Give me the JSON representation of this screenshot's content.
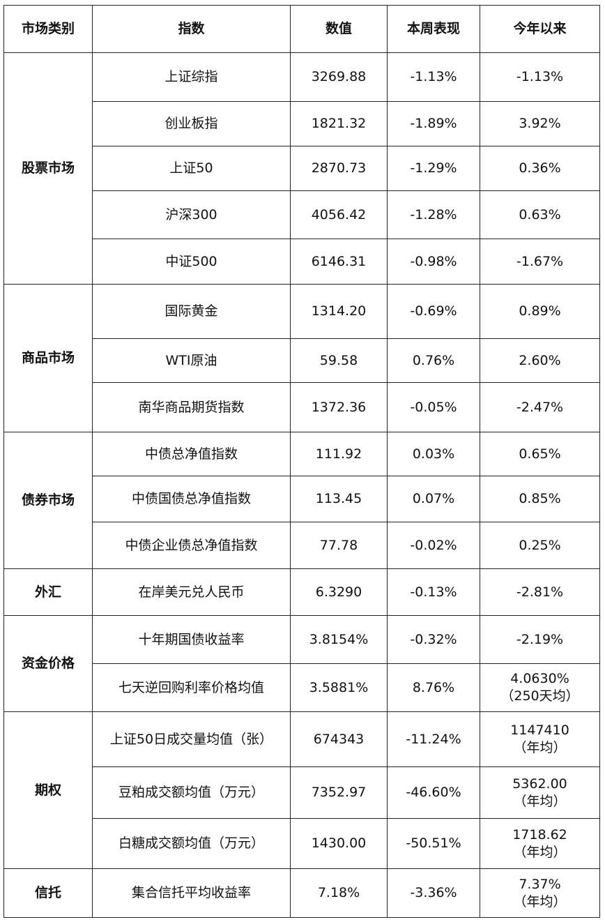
{
  "table": {
    "header": [
      "市场类别",
      "指数",
      "数值",
      "本周表现",
      "今年以来"
    ],
    "groups": [
      {
        "category": "股票市场",
        "rows": [
          [
            "上证综指",
            "3269.88",
            "-1.13%",
            "-1.13%"
          ],
          [
            "创业板指",
            "1821.32",
            "-1.89%",
            "3.92%"
          ],
          [
            "上证50",
            "2870.73",
            "-1.29%",
            "0.36%"
          ],
          [
            "沪深300",
            "4056.42",
            "-1.28%",
            "0.63%"
          ],
          [
            "中证500",
            "6146.31",
            "-0.98%",
            "-1.67%"
          ]
        ]
      },
      {
        "category": "商品市场",
        "rows": [
          [
            "国际黄金",
            "1314.20",
            "-0.69%",
            "0.89%"
          ],
          [
            "WTI原油",
            "59.58",
            "0.76%",
            "2.60%"
          ],
          [
            "南华商品期货指数",
            "1372.36",
            "-0.05%",
            "-2.47%"
          ]
        ]
      },
      {
        "category": "债券市场",
        "rows": [
          [
            "中债总净值指数",
            "111.92",
            "0.03%",
            "0.65%"
          ],
          [
            "中债国债总净值指数",
            "113.45",
            "0.07%",
            "0.85%"
          ],
          [
            "中债企业债总净值指数",
            "77.78",
            "-0.02%",
            "0.25%"
          ]
        ]
      },
      {
        "category": "外汇",
        "rows": [
          [
            "在岸美元兑人民币",
            "6.3290",
            "-0.13%",
            "-2.81%"
          ]
        ]
      },
      {
        "category": "资金价格",
        "rows": [
          [
            "十年期国债收益率",
            "3.8154%",
            "-0.32%",
            "-2.19%"
          ],
          [
            "七天逆回购利率价格均值",
            "3.5881%",
            "8.76%",
            [
              "4.0630%",
              "（250天均）"
            ]
          ]
        ]
      },
      {
        "category": "期权",
        "rows": [
          [
            "上证50日成交量均值（张）",
            "674343",
            "-11.24%",
            [
              "1147410",
              "（年均）"
            ]
          ],
          [
            "豆粕成交额均值（万元）",
            "7352.97",
            "-46.60%",
            [
              "5362.00",
              "（年均）"
            ]
          ],
          [
            "白糖成交额均值（万元）",
            "1430.00",
            "-50.51%",
            [
              "1718.62",
              "（年均）"
            ]
          ]
        ]
      },
      {
        "category": "信托",
        "rows": [
          [
            "集合信托平均收益率",
            "7.18%",
            "-3.36%",
            [
              "7.37%",
              "（年均）"
            ]
          ]
        ]
      }
    ]
  }
}
